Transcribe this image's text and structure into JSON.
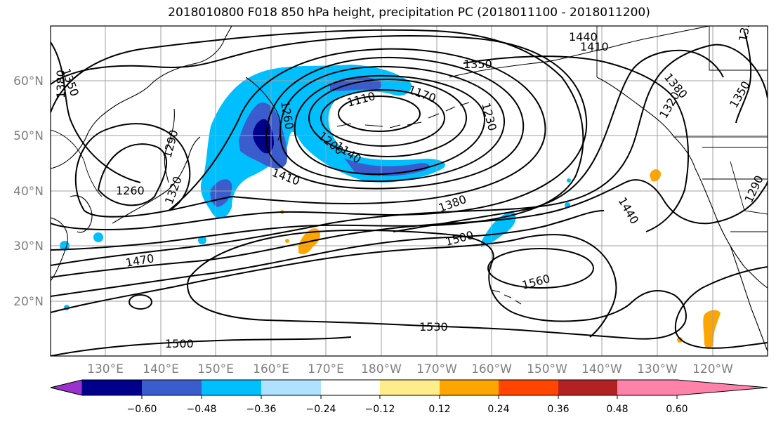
{
  "title": "2018010800 F018 850 hPa height, precipitation PC (2018011100 - 2018011200)",
  "axes": {
    "lat_labels": [
      "20°N",
      "30°N",
      "40°N",
      "50°N",
      "60°N"
    ],
    "lon_labels": [
      "130°E",
      "140°E",
      "150°E",
      "160°E",
      "170°E",
      "180°W",
      "170°W",
      "160°W",
      "150°W",
      "140°W",
      "130°W",
      "120°W"
    ]
  },
  "colorbar": {
    "colors": [
      "#9a32cd",
      "#00008b",
      "#3a5ccc",
      "#00bfff",
      "#b0e2ff",
      "#ffffff",
      "#ffec8b",
      "#ffa500",
      "#ff4500",
      "#b22222",
      "#ff82ab"
    ],
    "tick_labels": [
      "−0.60",
      "−0.48",
      "−0.36",
      "−0.24",
      "−0.12",
      "0.12",
      "0.24",
      "0.36",
      "0.48",
      "0.60"
    ]
  },
  "contour_labels": [
    "1440",
    "1410",
    "1350",
    "1380",
    "1320",
    "1350",
    "1380",
    "1320",
    "1350",
    "1260",
    "1290",
    "1170",
    "1110",
    "1140",
    "1200",
    "1230",
    "1260",
    "1320",
    "1410",
    "1380",
    "1440",
    "1470",
    "1500",
    "1560",
    "1530",
    "1500",
    "1290"
  ],
  "chart_data": {
    "type": "contour-map",
    "title": "2018010800 F018 850 hPa height, precipitation PC (2018011100 - 2018011200)",
    "lat_range": [
      "10°N",
      "70°N"
    ],
    "lon_range": [
      "120°E",
      "110°W"
    ],
    "height_contour_interval_m": 30,
    "height_contour_values": [
      1110,
      1140,
      1170,
      1200,
      1230,
      1260,
      1290,
      1320,
      1350,
      1380,
      1410,
      1440,
      1470,
      1500,
      1530,
      1560
    ],
    "precip_pc_levels": [
      -0.6,
      -0.48,
      -0.36,
      -0.24,
      -0.12,
      0.12,
      0.24,
      0.36,
      0.48,
      0.6
    ],
    "grid": true
  }
}
